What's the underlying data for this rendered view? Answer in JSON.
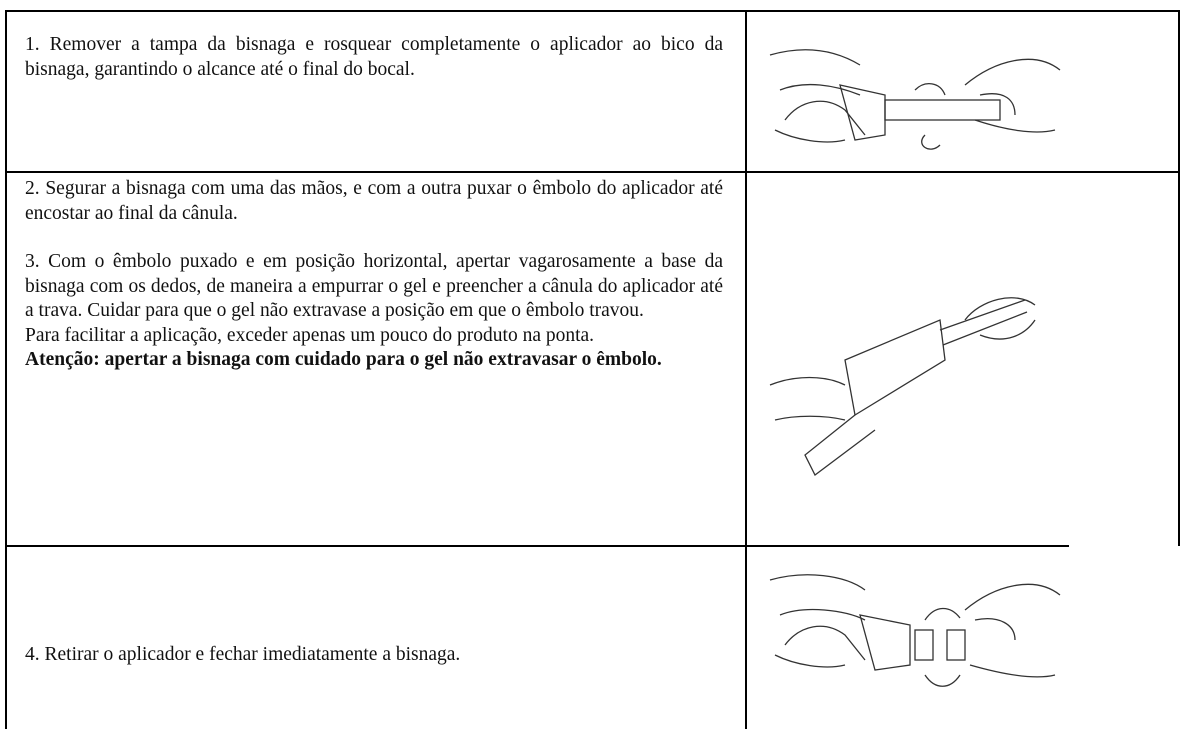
{
  "steps": [
    {
      "paragraphs": [
        "1. Remover a tampa da bisnaga e rosquear completamente o aplicador ao bico da bisnaga, garantindo o alcance até o final do bocal."
      ]
    },
    {
      "paragraphs": [
        "2. Segurar a bisnaga com uma das mãos, e com a outra puxar o êmbolo do aplicador até encostar ao final da cânula.",
        "3. Com o êmbolo puxado e em posição horizontal, apertar vagarosamente a base da bisnaga com os dedos, de maneira a empurrar o gel e preencher a cânula do aplicador até a trava. Cuidar para que o gel não extravase a posição em que o êmbolo travou.",
        "Para facilitar a aplicação, exceder apenas um pouco do produto na ponta."
      ],
      "warning": "Atenção: apertar a bisnaga com cuidado para o gel não extravasar o êmbolo."
    },
    {
      "paragraphs": [
        "4. Retirar o aplicador e fechar imediatamente a bisnaga."
      ]
    }
  ]
}
